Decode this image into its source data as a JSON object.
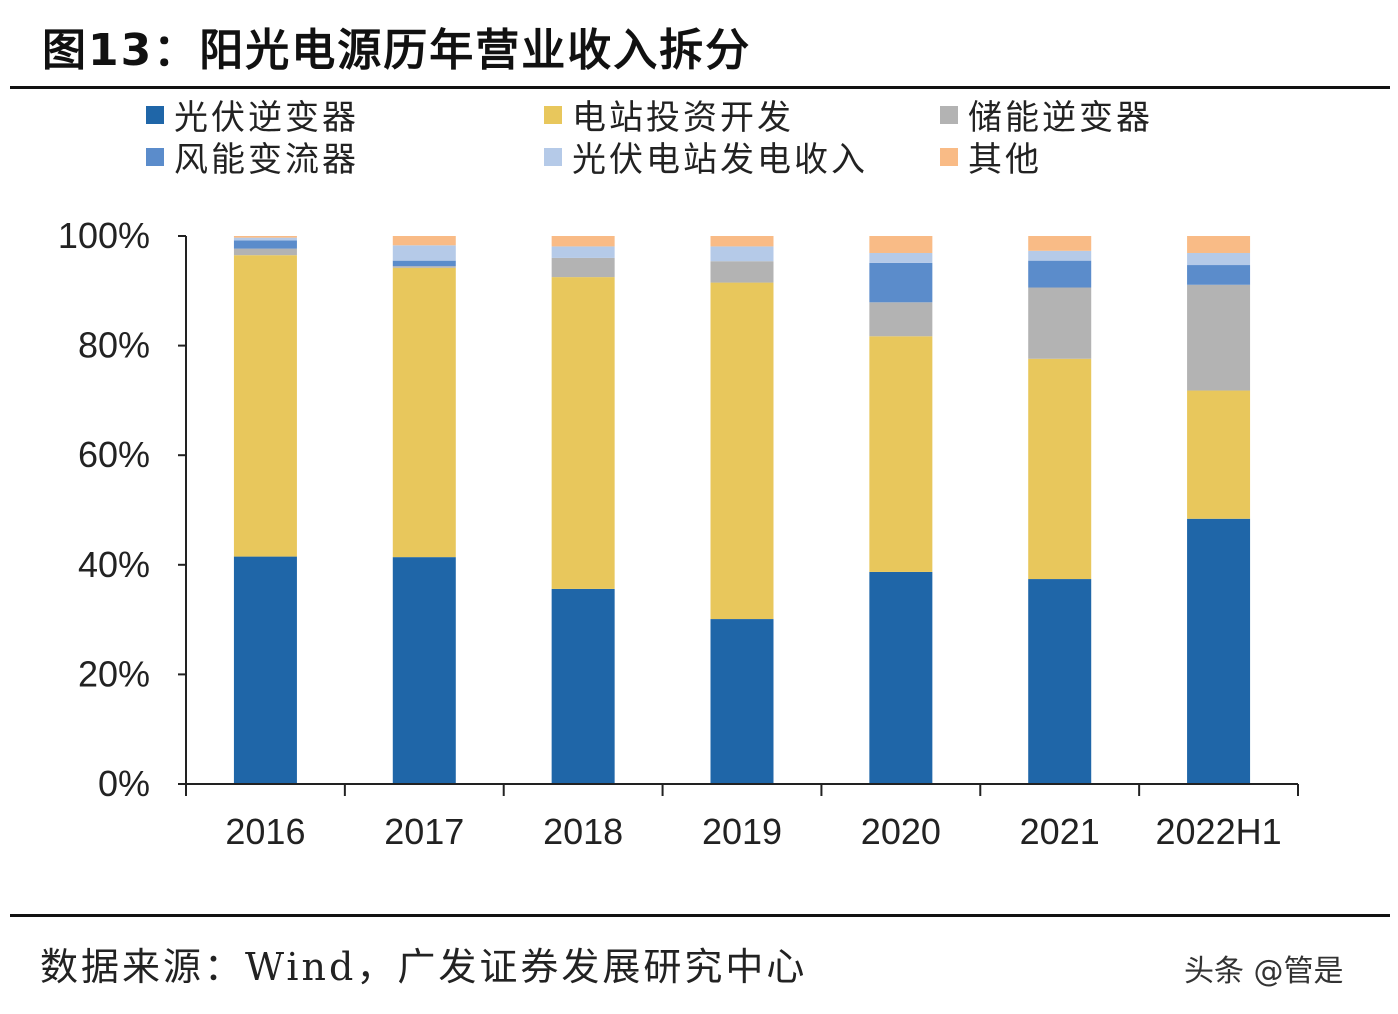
{
  "title": "图13：阳光电源历年营业收入拆分",
  "source": "数据来源：Wind，广发证券发展研究中心",
  "watermark": "头条 @管是",
  "chart_data": {
    "type": "bar",
    "stacked": true,
    "categories": [
      "2016",
      "2017",
      "2018",
      "2019",
      "2020",
      "2021",
      "2022H1"
    ],
    "ylim": [
      0,
      100
    ],
    "yticks": [
      "0%",
      "20%",
      "40%",
      "60%",
      "80%",
      "100%"
    ],
    "grid": false,
    "legend_position": "top",
    "series": [
      {
        "name": "光伏逆变器",
        "color": "#1F66A8",
        "values": [
          41.5,
          41.4,
          35.6,
          30.1,
          38.7,
          37.4,
          48.4
        ]
      },
      {
        "name": "电站投资开发",
        "color": "#E8C75C",
        "values": [
          55.0,
          52.8,
          56.9,
          61.4,
          43.0,
          40.2,
          23.4
        ]
      },
      {
        "name": "储能逆变器",
        "color": "#B3B3B3",
        "values": [
          1.2,
          0.3,
          3.5,
          3.9,
          6.2,
          13.0,
          19.3
        ]
      },
      {
        "name": "风能变流器",
        "color": "#5B8CCB",
        "values": [
          1.5,
          1.0,
          0,
          0,
          7.2,
          4.9,
          3.6
        ]
      },
      {
        "name": "光伏电站发电收入",
        "color": "#B5CAE8",
        "values": [
          0.5,
          2.8,
          2.1,
          2.7,
          1.8,
          1.8,
          2.2
        ]
      },
      {
        "name": "其他",
        "color": "#F9BB86",
        "values": [
          0.3,
          1.7,
          1.9,
          1.9,
          3.1,
          2.7,
          3.1
        ]
      }
    ]
  }
}
